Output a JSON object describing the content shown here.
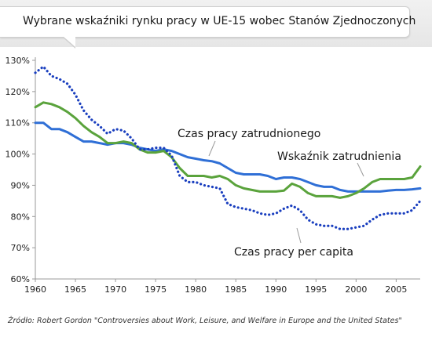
{
  "header": {
    "title": "Wybrane wskaźniki rynku pracy w UE-15 wobec Stanów Zjednoczonych"
  },
  "chart_data": {
    "type": "line",
    "title": "Wybrane wskaźniki rynku pracy w UE-15 wobec Stanów Zjednoczonych",
    "xlabel": "",
    "ylabel": "",
    "xlim": [
      1960,
      2008
    ],
    "ylim": [
      60,
      130
    ],
    "x_ticks": [
      1960,
      1965,
      1970,
      1975,
      1980,
      1985,
      1990,
      1995,
      2000,
      2005
    ],
    "y_ticks": [
      60,
      70,
      80,
      90,
      100,
      110,
      120,
      130
    ],
    "y_tick_labels": [
      "60%",
      "70%",
      "80%",
      "90%",
      "100%",
      "110%",
      "120%",
      "130%"
    ],
    "grid": false,
    "x": [
      1960,
      1961,
      1962,
      1963,
      1964,
      1965,
      1966,
      1967,
      1968,
      1969,
      1970,
      1971,
      1972,
      1973,
      1974,
      1975,
      1976,
      1977,
      1978,
      1979,
      1980,
      1981,
      1982,
      1983,
      1984,
      1985,
      1986,
      1987,
      1988,
      1989,
      1990,
      1991,
      1992,
      1993,
      1994,
      1995,
      1996,
      1997,
      1998,
      1999,
      2000,
      2001,
      2002,
      2003,
      2004,
      2005,
      2006,
      2007,
      2008
    ],
    "series": [
      {
        "name": "Czas pracy zatrudnionego",
        "color": "#2f6fd6",
        "style": "solid",
        "values": [
          110,
          110,
          108,
          108,
          107,
          105.5,
          104,
          104,
          103.5,
          103,
          103.5,
          103.5,
          103,
          102,
          101.5,
          101,
          101.5,
          101,
          100,
          99,
          98.5,
          98,
          97.7,
          97,
          95.5,
          94,
          93.5,
          93.5,
          93.5,
          93,
          92,
          92.5,
          92.5,
          92,
          91,
          90,
          89.5,
          89.5,
          88.5,
          88,
          88,
          88,
          88,
          88,
          88.3,
          88.5,
          88.5,
          88.7,
          89
        ]
      },
      {
        "name": "Wskaźnik zatrudnienia",
        "color": "#5aa33c",
        "style": "solid",
        "values": [
          115,
          116.5,
          116,
          115,
          113.5,
          111.5,
          109,
          107,
          105.5,
          103.5,
          103.5,
          104,
          103.5,
          101.5,
          100.5,
          100.5,
          101,
          99,
          95.5,
          93,
          93,
          93,
          92.5,
          93,
          92,
          90,
          89,
          88.5,
          88,
          88,
          88,
          88.3,
          90.5,
          89.5,
          87.5,
          86.5,
          86.5,
          86.5,
          86,
          86.5,
          87.5,
          89,
          91,
          92,
          92,
          92,
          92,
          92.5,
          96
        ]
      },
      {
        "name": "Czas pracy per capita",
        "color": "#1a3fbf",
        "style": "dotted",
        "values": [
          126,
          128,
          125,
          124,
          122.5,
          119,
          114,
          111,
          109,
          106.5,
          108,
          107.5,
          105,
          101.5,
          101.5,
          102,
          102,
          99.5,
          93,
          91,
          91,
          90,
          89.5,
          89,
          84,
          83,
          82.5,
          82,
          81,
          80.5,
          81,
          82.5,
          83.5,
          82,
          79,
          77.5,
          77,
          77,
          76,
          76,
          76.5,
          77,
          79,
          80.5,
          81,
          81,
          81,
          82,
          85
        ]
      }
    ]
  },
  "source": "Źródło: Robert Gordon \"Controversies about Work, Leisure, and Welfare in Europe and the United States\""
}
